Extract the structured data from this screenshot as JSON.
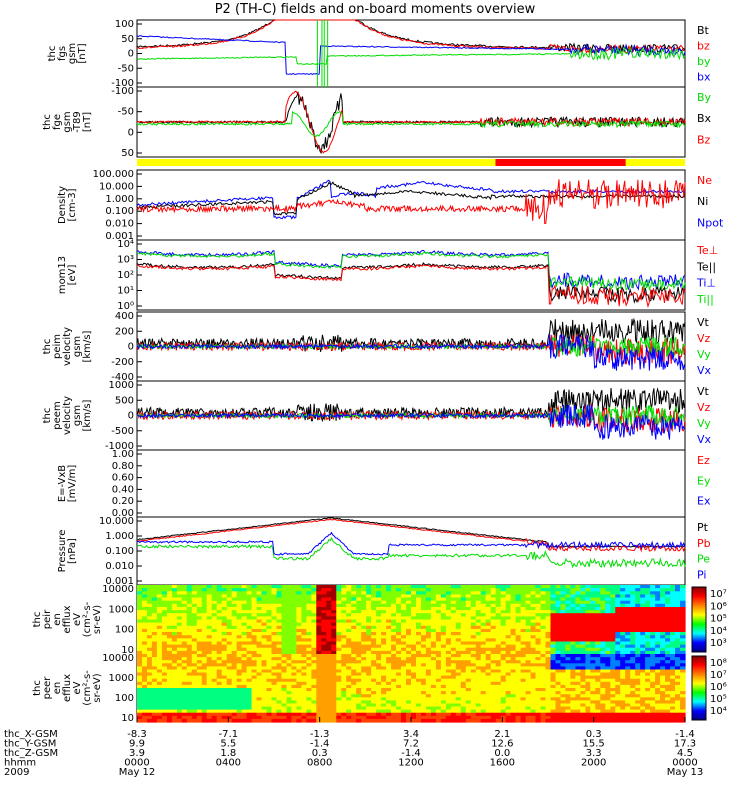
{
  "title": "P2 (TH-C) fields and on-board moments overview",
  "colors": {
    "black": "#000000",
    "red": "#ff0000",
    "green": "#00dd00",
    "blue": "#0000ff",
    "yellow": "#ffff00"
  },
  "panels": [
    {
      "id": "fgs",
      "ylabel": [
        "thc",
        "fgs",
        "gsm",
        "[nT]"
      ],
      "ticks": [
        "100",
        "50",
        "0",
        "-50",
        "-100"
      ],
      "legend": [
        "Bt",
        "bz",
        "by",
        "bx"
      ],
      "legend_colors": [
        "black",
        "red",
        "green",
        "blue"
      ]
    },
    {
      "id": "fge",
      "ylabel": [
        "thc",
        "fge",
        "gsm",
        "-T89",
        "[nT]"
      ],
      "ticks": [
        "-100",
        "-50",
        "0",
        "50"
      ],
      "legend": [
        "By",
        "Bx",
        "Bz"
      ],
      "legend_colors": [
        "green",
        "black",
        "red"
      ]
    },
    {
      "id": "density",
      "ylabel": [
        "Density",
        "[cm-3]"
      ],
      "ticks": [
        "100.000",
        "10.000",
        "1.000",
        "0.100",
        "0.010",
        "0.001"
      ],
      "legend": [
        "Ne",
        "Ni",
        "Npot"
      ],
      "legend_colors": [
        "red",
        "black",
        "blue"
      ]
    },
    {
      "id": "temp",
      "ylabel": [
        "mom13",
        "[eV]"
      ],
      "ticks": [
        "10⁴",
        "10³",
        "10²",
        "10¹",
        "10⁰"
      ],
      "legend": [
        "Te⊥",
        "Te||",
        "Ti⊥",
        "Ti||"
      ],
      "legend_colors": [
        "red",
        "black",
        "blue",
        "green"
      ]
    },
    {
      "id": "ivel",
      "ylabel": [
        "thc",
        "peim",
        "velocity",
        "gsm",
        "[km/s]"
      ],
      "ticks": [
        "400",
        "200",
        "0",
        "-200",
        "-400"
      ],
      "legend": [
        "Vt",
        "Vz",
        "Vy",
        "Vx"
      ],
      "legend_colors": [
        "black",
        "red",
        "green",
        "blue"
      ]
    },
    {
      "id": "evel",
      "ylabel": [
        "thc",
        "peem",
        "velocity",
        "gsm",
        "[km/s]"
      ],
      "ticks": [
        "1000",
        "500",
        "0",
        "-500",
        "-1000"
      ],
      "legend": [
        "Vt",
        "Vz",
        "Vy",
        "Vx"
      ],
      "legend_colors": [
        "black",
        "red",
        "green",
        "blue"
      ]
    },
    {
      "id": "efield",
      "ylabel": [
        "E=-VxB",
        "[mV/m]"
      ],
      "ticks": [
        "1.00",
        "0.80",
        "0.60",
        "0.40",
        "0.20",
        "0.00"
      ],
      "legend": [
        "Ez",
        "Ey",
        "Ex"
      ],
      "legend_colors": [
        "red",
        "green",
        "blue"
      ]
    },
    {
      "id": "pressure",
      "ylabel": [
        "Pressure",
        "[nPa]"
      ],
      "ticks": [
        "10.000",
        "1.000",
        "0.100",
        "0.010",
        "0.001"
      ],
      "legend": [
        "Pt",
        "Pb",
        "Pe",
        "Pi"
      ],
      "legend_colors": [
        "black",
        "red",
        "green",
        "blue"
      ]
    },
    {
      "id": "peir",
      "ylabel": [
        "thc",
        "peir",
        "en",
        "efflux",
        "eV",
        "(cm²-s-",
        "sr-eV)"
      ],
      "ticks": [
        "10000",
        "1000",
        "100",
        "10"
      ],
      "colorbar": [
        "10⁷",
        "10⁶",
        "10⁵",
        "10⁴",
        "10³"
      ]
    },
    {
      "id": "peer",
      "ylabel": [
        "thc",
        "peer",
        "en",
        "efflux",
        "eV",
        "(cm²-s-",
        "sr-eV)"
      ],
      "ticks": [
        "10000",
        "1000",
        "100",
        "10"
      ],
      "colorbar": [
        "10⁸",
        "10⁷",
        "10⁶",
        "10⁵",
        "10⁴"
      ]
    }
  ],
  "xaxis": {
    "row_labels": [
      "thc_X-GSM",
      "thc_Y-GSM",
      "thc_Z-GSM",
      "hhmm",
      "2009"
    ],
    "columns": [
      {
        "x": "-8.3",
        "y": "9.9",
        "z": "3.9",
        "t": "0000",
        "d": "May 12"
      },
      {
        "x": "-7.1",
        "y": "5.5",
        "z": "1.8",
        "t": "0400",
        "d": ""
      },
      {
        "x": "-1.3",
        "y": "-1.4",
        "z": "0.3",
        "t": "0800",
        "d": ""
      },
      {
        "x": "3.4",
        "y": "7.2",
        "z": "-1.4",
        "t": "1200",
        "d": ""
      },
      {
        "x": "2.1",
        "y": "12.6",
        "z": "0.0",
        "t": "1600",
        "d": ""
      },
      {
        "x": "0.3",
        "y": "15.5",
        "z": "3.3",
        "t": "2000",
        "d": ""
      },
      {
        "x": "-1.4",
        "y": "17.3",
        "z": "4.5",
        "t": "0000",
        "d": "May 13"
      }
    ]
  }
}
